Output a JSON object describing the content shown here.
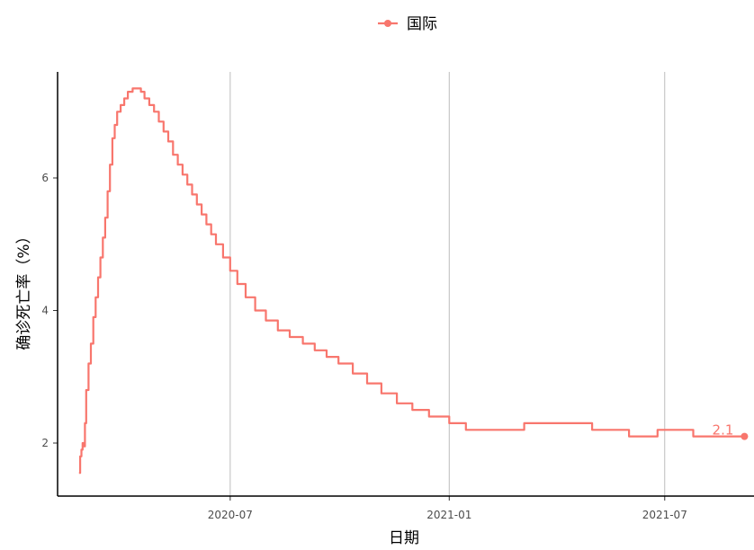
{
  "chart_data": {
    "type": "line",
    "title": "",
    "xlabel": "日期",
    "ylabel": "确诊死亡率（%）",
    "x_tick_labels": [
      "2020-07",
      "2021-01",
      "2021-07"
    ],
    "y_tick_labels": [
      "2",
      "4",
      "6"
    ],
    "grid": "vertical major gridlines only",
    "legend": "top",
    "ylim": [
      1.2,
      7.6
    ],
    "xlim": [
      "2020-02-07",
      "2021-09-14"
    ],
    "series": [
      {
        "name": "国际",
        "color": "#F8766D",
        "end_label": "2.1",
        "points": [
          [
            "2020-02-25",
            1.55
          ],
          [
            "2020-02-26",
            1.8
          ],
          [
            "2020-02-27",
            1.9
          ],
          [
            "2020-02-28",
            2.0
          ],
          [
            "2020-02-29",
            1.95
          ],
          [
            "2020-03-01",
            2.3
          ],
          [
            "2020-03-02",
            2.8
          ],
          [
            "2020-03-04",
            3.2
          ],
          [
            "2020-03-06",
            3.5
          ],
          [
            "2020-03-08",
            3.9
          ],
          [
            "2020-03-10",
            4.2
          ],
          [
            "2020-03-12",
            4.5
          ],
          [
            "2020-03-14",
            4.8
          ],
          [
            "2020-03-16",
            5.1
          ],
          [
            "2020-03-18",
            5.4
          ],
          [
            "2020-03-20",
            5.8
          ],
          [
            "2020-03-22",
            6.2
          ],
          [
            "2020-03-24",
            6.6
          ],
          [
            "2020-03-26",
            6.8
          ],
          [
            "2020-03-28",
            7.0
          ],
          [
            "2020-03-31",
            7.1
          ],
          [
            "2020-04-03",
            7.2
          ],
          [
            "2020-04-06",
            7.3
          ],
          [
            "2020-04-10",
            7.35
          ],
          [
            "2020-04-14",
            7.35
          ],
          [
            "2020-04-17",
            7.3
          ],
          [
            "2020-04-20",
            7.2
          ],
          [
            "2020-04-24",
            7.1
          ],
          [
            "2020-04-28",
            7.0
          ],
          [
            "2020-05-02",
            6.85
          ],
          [
            "2020-05-06",
            6.7
          ],
          [
            "2020-05-10",
            6.55
          ],
          [
            "2020-05-14",
            6.35
          ],
          [
            "2020-05-18",
            6.2
          ],
          [
            "2020-05-22",
            6.05
          ],
          [
            "2020-05-26",
            5.9
          ],
          [
            "2020-05-30",
            5.75
          ],
          [
            "2020-06-03",
            5.6
          ],
          [
            "2020-06-07",
            5.45
          ],
          [
            "2020-06-11",
            5.3
          ],
          [
            "2020-06-15",
            5.15
          ],
          [
            "2020-06-19",
            5.0
          ],
          [
            "2020-06-25",
            4.8
          ],
          [
            "2020-07-01",
            4.6
          ],
          [
            "2020-07-07",
            4.4
          ],
          [
            "2020-07-14",
            4.2
          ],
          [
            "2020-07-22",
            4.0
          ],
          [
            "2020-07-31",
            3.85
          ],
          [
            "2020-08-10",
            3.7
          ],
          [
            "2020-08-20",
            3.6
          ],
          [
            "2020-08-31",
            3.5
          ],
          [
            "2020-09-10",
            3.4
          ],
          [
            "2020-09-20",
            3.3
          ],
          [
            "2020-09-30",
            3.2
          ],
          [
            "2020-10-12",
            3.05
          ],
          [
            "2020-10-24",
            2.9
          ],
          [
            "2020-11-05",
            2.75
          ],
          [
            "2020-11-18",
            2.6
          ],
          [
            "2020-12-01",
            2.5
          ],
          [
            "2020-12-15",
            2.4
          ],
          [
            "2021-01-01",
            2.3
          ],
          [
            "2021-01-15",
            2.2
          ],
          [
            "2021-02-15",
            2.2
          ],
          [
            "2021-03-05",
            2.3
          ],
          [
            "2021-04-20",
            2.3
          ],
          [
            "2021-05-01",
            2.2
          ],
          [
            "2021-05-31",
            2.2
          ],
          [
            "2021-06-01",
            2.1
          ],
          [
            "2021-06-20",
            2.1
          ],
          [
            "2021-06-25",
            2.2
          ],
          [
            "2021-07-20",
            2.2
          ],
          [
            "2021-07-25",
            2.1
          ],
          [
            "2021-09-06",
            2.1
          ]
        ]
      }
    ]
  }
}
